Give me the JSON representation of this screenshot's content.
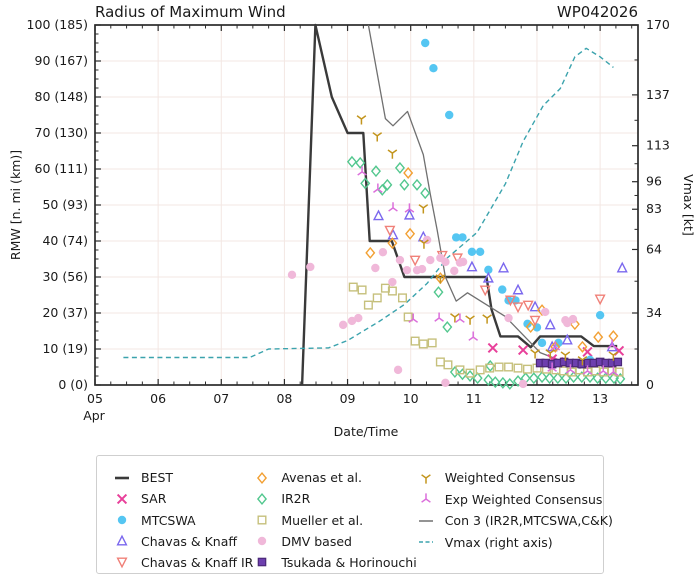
{
  "title": "Radius of Maximum Wind",
  "storm_id": "WP042026",
  "axes": {
    "x_label": "Date/Time",
    "x_month": "Apr",
    "x_range": [
      5,
      13.6
    ],
    "x_ticks": [
      {
        "v": 5,
        "label": "05"
      },
      {
        "v": 6,
        "label": "06"
      },
      {
        "v": 7,
        "label": "07"
      },
      {
        "v": 8,
        "label": "08"
      },
      {
        "v": 9,
        "label": "09"
      },
      {
        "v": 10,
        "label": "10"
      },
      {
        "v": 11,
        "label": "11"
      },
      {
        "v": 12,
        "label": "12"
      },
      {
        "v": 13,
        "label": "13"
      }
    ],
    "y_left_label": "RMW [n. mi (km)]",
    "y_left_range": [
      0,
      100
    ],
    "y_left_ticks": [
      {
        "v": 0,
        "label": "0 (0)"
      },
      {
        "v": 10,
        "label": "10 (19)"
      },
      {
        "v": 20,
        "label": "20 (37)"
      },
      {
        "v": 30,
        "label": "30 (56)"
      },
      {
        "v": 40,
        "label": "40 (74)"
      },
      {
        "v": 50,
        "label": "50 (93)"
      },
      {
        "v": 60,
        "label": "60 (111)"
      },
      {
        "v": 70,
        "label": "70 (130)"
      },
      {
        "v": 80,
        "label": "80 (148)"
      },
      {
        "v": 90,
        "label": "90 (167)"
      },
      {
        "v": 100,
        "label": "100 (185)"
      }
    ],
    "y_right_label": "Vmax [kt]",
    "y_right_range": [
      0,
      170
    ],
    "y_right_ticks": [
      0,
      34,
      64,
      83,
      96,
      113,
      137,
      170
    ]
  },
  "colors": {
    "grid": "#f3e7e3",
    "spine": "#2b2b2b",
    "best": "#3a3a3a",
    "sar": "#e8409a",
    "mtcswa": "#55c6f2",
    "chavas_knaff": "#7b68ee",
    "chavas_knaff_ir": "#f08078",
    "avenas": "#f2a033",
    "ir2r": "#52c78e",
    "mueller": "#c6c07c",
    "dmv": "#f0b8d9",
    "tsukada": "#6d3fae",
    "tsukada_edge": "#4b2878",
    "weighted": "#c3951d",
    "exp_weighted": "#db6fdb",
    "con3": "#707070",
    "vmax": "#3ba3ad"
  },
  "chart_data": {
    "type": "line+scatter",
    "series": [
      {
        "key": "best",
        "name": "BEST",
        "type": "line",
        "width": 2.4,
        "color": "#3a3a3a",
        "points": [
          [
            8.28,
            0
          ],
          [
            8.49,
            100
          ],
          [
            8.75,
            80
          ],
          [
            9.0,
            70
          ],
          [
            9.25,
            70
          ],
          [
            9.35,
            40
          ],
          [
            9.7,
            40
          ],
          [
            9.9,
            30
          ],
          [
            11.2,
            30
          ],
          [
            11.28,
            21
          ],
          [
            11.42,
            13.5
          ],
          [
            11.7,
            13.5
          ],
          [
            11.9,
            10.5
          ],
          [
            12.05,
            13.5
          ],
          [
            12.7,
            13.5
          ],
          [
            12.9,
            10.8
          ],
          [
            13.27,
            10.8
          ]
        ]
      },
      {
        "key": "sar",
        "name": "SAR",
        "type": "scatter",
        "marker": "x",
        "color": "#e8409a",
        "points": [
          [
            11.3,
            10.3
          ],
          [
            11.78,
            9.7
          ],
          [
            12.24,
            7.2
          ],
          [
            12.34,
            6.4
          ],
          [
            12.8,
            9.2
          ],
          [
            13.3,
            9.5
          ]
        ]
      },
      {
        "key": "mtcswa",
        "name": "MTCSWA",
        "type": "scatter",
        "marker": "circle",
        "color": "#55c6f2",
        "points": [
          [
            10.23,
            95
          ],
          [
            10.36,
            88
          ],
          [
            10.61,
            75
          ],
          [
            10.72,
            41
          ],
          [
            10.82,
            41
          ],
          [
            10.97,
            37
          ],
          [
            11.1,
            37
          ],
          [
            11.23,
            32
          ],
          [
            11.45,
            26.5
          ],
          [
            11.55,
            23.5
          ],
          [
            11.66,
            23.5
          ],
          [
            11.85,
            17
          ],
          [
            12.0,
            16
          ],
          [
            12.08,
            11.7
          ],
          [
            12.34,
            11.7
          ],
          [
            12.84,
            7
          ],
          [
            13.0,
            19.4
          ]
        ]
      },
      {
        "key": "chavas_knaff",
        "name": "Chavas & Knaff",
        "type": "scatter",
        "marker": "tri-up",
        "color": "#7b68ee",
        "points": [
          [
            9.49,
            47
          ],
          [
            9.72,
            41.7
          ],
          [
            9.98,
            47.2
          ],
          [
            10.2,
            41.1
          ],
          [
            10.97,
            32.8
          ],
          [
            11.23,
            29.7
          ],
          [
            11.47,
            32.5
          ],
          [
            11.7,
            26.4
          ],
          [
            11.97,
            21.7
          ],
          [
            12.21,
            16.7
          ],
          [
            12.24,
            10.6
          ],
          [
            12.48,
            12.5
          ],
          [
            13.19,
            10.6
          ],
          [
            13.35,
            32.5
          ]
        ]
      },
      {
        "key": "chavas_knaff_ir",
        "name": "Chavas & Knaff IR",
        "type": "scatter",
        "marker": "tri-down",
        "color": "#f08078",
        "points": [
          [
            9.67,
            43
          ],
          [
            10.07,
            34.7
          ],
          [
            10.5,
            36
          ],
          [
            10.74,
            35.3
          ],
          [
            11.18,
            26.4
          ],
          [
            11.58,
            23.6
          ],
          [
            11.7,
            21.7
          ],
          [
            11.86,
            22.2
          ],
          [
            11.97,
            18
          ],
          [
            13.0,
            23.9
          ]
        ]
      },
      {
        "key": "avenas",
        "name": "Avenas et al.",
        "type": "scatter",
        "marker": "diamond",
        "color": "#f2a033",
        "points": [
          [
            9.36,
            36.7
          ],
          [
            9.71,
            39.4
          ],
          [
            9.96,
            58.9
          ],
          [
            9.99,
            42
          ],
          [
            10.47,
            29.7
          ],
          [
            11.9,
            16.1
          ],
          [
            12.08,
            20.8
          ],
          [
            12.29,
            10.6
          ],
          [
            12.6,
            16.9
          ],
          [
            12.72,
            10.6
          ],
          [
            12.97,
            13.3
          ],
          [
            13.21,
            13.6
          ]
        ]
      },
      {
        "key": "ir2r",
        "name": "IR2R",
        "type": "scatter",
        "marker": "diamond",
        "color": "#52c78e",
        "points": [
          [
            9.07,
            62
          ],
          [
            9.2,
            61.7
          ],
          [
            9.28,
            56
          ],
          [
            9.45,
            59.4
          ],
          [
            9.55,
            54.2
          ],
          [
            9.63,
            55.6
          ],
          [
            9.83,
            60.3
          ],
          [
            9.9,
            55.6
          ],
          [
            10.1,
            55.6
          ],
          [
            10.23,
            53.3
          ],
          [
            10.44,
            25.8
          ],
          [
            10.58,
            16.1
          ],
          [
            10.7,
            3.6
          ],
          [
            10.82,
            3.0
          ],
          [
            10.94,
            2.5
          ],
          [
            11.06,
            1.9
          ],
          [
            11.23,
            1.4
          ],
          [
            11.26,
            5.3
          ],
          [
            11.34,
            0.8
          ],
          [
            11.46,
            0.6
          ],
          [
            11.57,
            0.3
          ],
          [
            11.7,
            1.1
          ],
          [
            11.82,
            1.9
          ],
          [
            11.95,
            1.9
          ],
          [
            12.08,
            2.2
          ],
          [
            12.2,
            1.9
          ],
          [
            12.33,
            1.9
          ],
          [
            12.46,
            1.9
          ],
          [
            12.58,
            2.2
          ],
          [
            12.71,
            2.2
          ],
          [
            12.84,
            2.2
          ],
          [
            12.96,
            1.9
          ],
          [
            13.09,
            1.9
          ],
          [
            13.22,
            1.9
          ],
          [
            13.32,
            1.7
          ]
        ]
      },
      {
        "key": "mueller",
        "name": "Mueller et al.",
        "type": "scatter",
        "marker": "square",
        "color": "#c6c07c",
        "points": [
          [
            9.09,
            27.2
          ],
          [
            9.23,
            26.4
          ],
          [
            9.33,
            22.2
          ],
          [
            9.47,
            24.2
          ],
          [
            9.6,
            26.9
          ],
          [
            9.71,
            26.1
          ],
          [
            9.87,
            24.2
          ],
          [
            9.96,
            18.9
          ],
          [
            10.07,
            12.2
          ],
          [
            10.2,
            11.4
          ],
          [
            10.34,
            11.7
          ],
          [
            10.47,
            6.4
          ],
          [
            10.59,
            5.6
          ],
          [
            10.78,
            4.2
          ],
          [
            10.94,
            3.3
          ],
          [
            11.1,
            4.2
          ],
          [
            11.25,
            4.7
          ],
          [
            11.4,
            5
          ],
          [
            11.55,
            5
          ],
          [
            11.7,
            4.7
          ],
          [
            11.85,
            4.4
          ],
          [
            12.0,
            4.7
          ],
          [
            12.15,
            4.4
          ],
          [
            12.3,
            4.2
          ],
          [
            12.42,
            3.9
          ],
          [
            12.55,
            3.6
          ],
          [
            12.68,
            4.2
          ],
          [
            12.8,
            3.6
          ],
          [
            12.93,
            3.9
          ],
          [
            13.06,
            3.6
          ],
          [
            13.19,
            3.9
          ],
          [
            13.3,
            3.6
          ]
        ]
      },
      {
        "key": "dmv",
        "name": "DMV based",
        "type": "scatter",
        "marker": "circle",
        "color": "#f0b8d9",
        "points": [
          [
            8.12,
            30.6
          ],
          [
            8.41,
            32.8
          ],
          [
            8.93,
            16.7
          ],
          [
            9.07,
            17.8
          ],
          [
            9.17,
            18.6
          ],
          [
            9.44,
            32.5
          ],
          [
            9.56,
            36.9
          ],
          [
            9.71,
            28.6
          ],
          [
            9.8,
            4.2
          ],
          [
            9.83,
            34.7
          ],
          [
            9.94,
            31.9
          ],
          [
            10.1,
            31.9
          ],
          [
            10.18,
            32.2
          ],
          [
            10.26,
            40.3
          ],
          [
            10.31,
            34.7
          ],
          [
            10.47,
            35.3
          ],
          [
            10.55,
            34.2
          ],
          [
            10.55,
            0.6
          ],
          [
            10.69,
            31.7
          ],
          [
            10.78,
            34
          ],
          [
            10.83,
            34.2
          ],
          [
            11.55,
            18.6
          ],
          [
            11.78,
            0.3
          ],
          [
            12.13,
            20.3
          ],
          [
            12.45,
            18
          ],
          [
            12.48,
            17.2
          ],
          [
            12.57,
            18.3
          ]
        ]
      },
      {
        "key": "tsukada",
        "name": "Tsukada & Horinouchi",
        "type": "scatter",
        "marker": "square-filled",
        "color": "#6d3fae",
        "edge": "#4b2878",
        "points": [
          [
            12.05,
            6.1
          ],
          [
            12.14,
            6.1
          ],
          [
            12.24,
            5.8
          ],
          [
            12.33,
            6.1
          ],
          [
            12.43,
            6.4
          ],
          [
            12.52,
            6.1
          ],
          [
            12.62,
            6.1
          ],
          [
            12.71,
            5.8
          ],
          [
            12.81,
            6.1
          ],
          [
            12.9,
            6.1
          ],
          [
            13.0,
            6.4
          ],
          [
            13.09,
            6.1
          ],
          [
            13.19,
            6.1
          ],
          [
            13.28,
            6.4
          ]
        ]
      },
      {
        "key": "weighted",
        "name": "Weighted Consensus",
        "type": "scatter",
        "marker": "tri-y-up",
        "color": "#c3951d",
        "points": [
          [
            9.22,
            73.9
          ],
          [
            9.47,
            69.2
          ],
          [
            9.71,
            64.4
          ],
          [
            10.2,
            49.2
          ],
          [
            10.21,
            39.4
          ],
          [
            10.47,
            29.7
          ],
          [
            10.7,
            18.9
          ],
          [
            10.94,
            18.3
          ],
          [
            11.21,
            18.6
          ],
          [
            11.97,
            8.9
          ],
          [
            12.21,
            8.9
          ],
          [
            12.45,
            8.3
          ],
          [
            12.72,
            7
          ],
          [
            13.21,
            8.3
          ]
        ]
      },
      {
        "key": "exp_weighted",
        "name": "Exp Weighted Consensus",
        "type": "scatter",
        "marker": "tri-y-down",
        "color": "#db6fdb",
        "points": [
          [
            9.23,
            59.2
          ],
          [
            9.48,
            54.4
          ],
          [
            9.72,
            49.2
          ],
          [
            9.98,
            48.9
          ],
          [
            10.04,
            18.3
          ],
          [
            10.45,
            18.6
          ],
          [
            10.78,
            18.3
          ],
          [
            10.99,
            13.3
          ],
          [
            12.24,
            4.7
          ],
          [
            12.29,
            10.6
          ],
          [
            12.53,
            4.2
          ],
          [
            12.8,
            3.9
          ],
          [
            13.05,
            3.9
          ],
          [
            13.19,
            11.1
          ],
          [
            13.21,
            3.6
          ]
        ]
      },
      {
        "key": "con3",
        "name": "Con 3 (IR2R,MTCSWA,C&K)",
        "type": "line",
        "width": 1.3,
        "color": "#707070",
        "points": [
          [
            9.33,
            100
          ],
          [
            9.6,
            74
          ],
          [
            9.72,
            72
          ],
          [
            9.95,
            76
          ],
          [
            10.2,
            64
          ],
          [
            10.31,
            53
          ],
          [
            10.42,
            43
          ],
          [
            10.55,
            30
          ],
          [
            10.72,
            23.3
          ],
          [
            10.9,
            25.6
          ],
          [
            11.5,
            19
          ],
          [
            12.05,
            9
          ],
          [
            12.68,
            4.7
          ],
          [
            12.92,
            6.1
          ]
        ]
      },
      {
        "key": "vmax",
        "name": "Vmax (right axis)",
        "type": "line",
        "axis": "right",
        "dash": "5 3.5",
        "width": 1.4,
        "color": "#3ba3ad",
        "points": [
          [
            5.45,
            13
          ],
          [
            7.45,
            13
          ],
          [
            7.75,
            17
          ],
          [
            8.7,
            17.5
          ],
          [
            9.0,
            21
          ],
          [
            9.5,
            30
          ],
          [
            9.9,
            38
          ],
          [
            10.26,
            48
          ],
          [
            10.58,
            60
          ],
          [
            11.05,
            72
          ],
          [
            11.5,
            95
          ],
          [
            11.78,
            115
          ],
          [
            12.1,
            132
          ],
          [
            12.37,
            140
          ],
          [
            12.6,
            155
          ],
          [
            12.78,
            159
          ],
          [
            13.0,
            155
          ],
          [
            13.21,
            150
          ]
        ]
      }
    ]
  },
  "legend": {
    "columns": [
      [
        "best",
        "sar",
        "mtcswa",
        "chavas_knaff",
        "chavas_knaff_ir"
      ],
      [
        "avenas",
        "ir2r",
        "mueller",
        "dmv",
        "tsukada"
      ],
      [
        "weighted",
        "exp_weighted",
        "con3",
        "vmax"
      ]
    ]
  }
}
